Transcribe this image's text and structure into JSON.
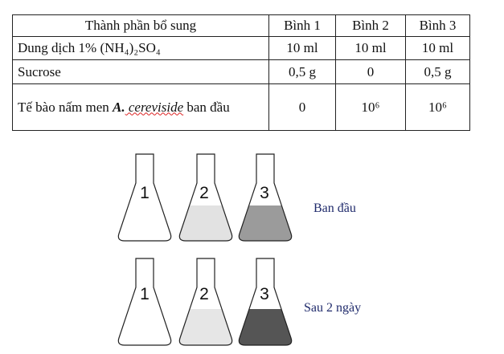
{
  "table": {
    "header": [
      "Thành phần bổ sung",
      "Bình 1",
      "Bình 2",
      "Bình 3"
    ],
    "rows": [
      [
        "Dung dịch 1% (NH₄)₂SO₄",
        "10 ml",
        "10 ml",
        "10 ml"
      ],
      [
        "Sucrose",
        "0,5 g",
        "0",
        "0,5 g"
      ],
      [
        {
          "parts": [
            "Tế bào nấm men ",
            "A.",
            " cereviside",
            " ban đầu"
          ]
        },
        "0",
        "10⁶",
        "10⁶"
      ]
    ]
  },
  "figure": {
    "flask_labels": [
      "1",
      "2",
      "3"
    ],
    "stages": [
      "Ban đầu",
      "Sau 2 ngày"
    ]
  }
}
